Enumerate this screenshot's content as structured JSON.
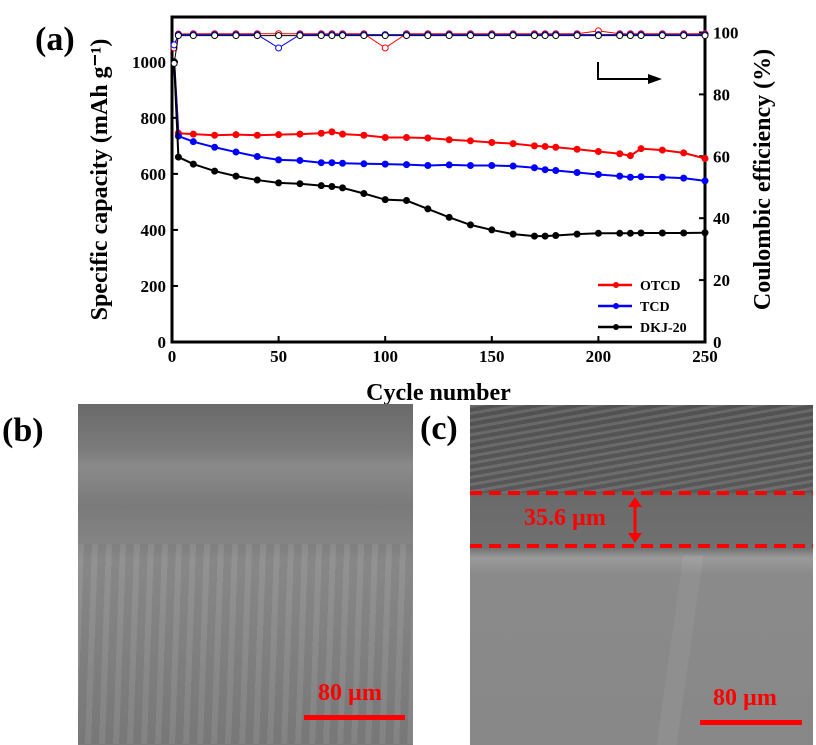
{
  "chart_data": {
    "type": "scatter-line",
    "panel_label": "(a)",
    "xlabel": "Cycle number",
    "ylabel": "Specific capacity (mAh g⁻¹)",
    "y2label": "Coulombic efficiency (%)",
    "xlim": [
      0,
      250
    ],
    "ylim": [
      0,
      1160
    ],
    "y2lim": [
      0,
      105
    ],
    "xticks": [
      0,
      50,
      100,
      150,
      200,
      250
    ],
    "yticks": [
      0,
      200,
      400,
      600,
      800,
      1000
    ],
    "y2ticks": [
      0,
      20,
      40,
      60,
      80,
      100
    ],
    "grid": false,
    "legend_position": "bottom-right",
    "cycles": [
      1,
      3,
      10,
      20,
      30,
      40,
      50,
      60,
      70,
      75,
      80,
      90,
      100,
      110,
      120,
      130,
      140,
      150,
      160,
      170,
      175,
      180,
      190,
      200,
      210,
      215,
      220,
      230,
      240,
      250
    ],
    "series": [
      {
        "name": "OTCD",
        "color": "#ff0000",
        "capacity": [
          1000,
          745,
          742,
          738,
          740,
          738,
          740,
          742,
          745,
          750,
          742,
          738,
          730,
          730,
          728,
          722,
          718,
          712,
          708,
          700,
          698,
          695,
          688,
          680,
          672,
          665,
          690,
          685,
          675,
          655
        ],
        "efficiency": [
          95,
          99.5,
          99.6,
          99.6,
          99.6,
          99.6,
          99.6,
          99.6,
          99.6,
          99.6,
          99.6,
          99.6,
          95,
          99.6,
          99.6,
          99.6,
          99.6,
          99.6,
          99.6,
          99.6,
          99.6,
          99.6,
          99.6,
          100.5,
          99.6,
          99.6,
          99.6,
          99.6,
          99.6,
          99.6
        ]
      },
      {
        "name": "TCD",
        "color": "#0000ff",
        "capacity": [
          1000,
          735,
          715,
          695,
          678,
          662,
          650,
          648,
          640,
          640,
          638,
          636,
          635,
          633,
          630,
          632,
          630,
          630,
          628,
          622,
          615,
          612,
          605,
          598,
          592,
          588,
          590,
          588,
          585,
          575
        ],
        "efficiency": [
          96,
          99.3,
          99.3,
          99.3,
          99.3,
          99.3,
          95,
          99.3,
          99.3,
          99.3,
          99.3,
          99.3,
          99.3,
          99.3,
          99.3,
          99.3,
          99.3,
          99.3,
          99.3,
          99.3,
          99.3,
          99.3,
          99.3,
          99.3,
          99.3,
          99.3,
          99.3,
          99.3,
          99.3,
          99.3
        ]
      },
      {
        "name": "DKJ-20",
        "color": "#000000",
        "capacity": [
          1000,
          660,
          635,
          610,
          592,
          578,
          568,
          565,
          558,
          555,
          550,
          530,
          508,
          505,
          475,
          445,
          418,
          400,
          385,
          378,
          378,
          380,
          385,
          388,
          388,
          388,
          389,
          389,
          389,
          390
        ],
        "efficiency": [
          90,
          99,
          99,
          99,
          99,
          99,
          99,
          99,
          99,
          99,
          99,
          99,
          99,
          99,
          99,
          99,
          99,
          99,
          99,
          99,
          99,
          99,
          99,
          99,
          99,
          99,
          99,
          99,
          99,
          99
        ]
      }
    ]
  },
  "panels": {
    "b": {
      "label": "(b)",
      "scale_bar": "80 µm"
    },
    "c": {
      "label": "(c)",
      "scale_bar": "80 µm",
      "thickness": "35.6 µm"
    }
  }
}
